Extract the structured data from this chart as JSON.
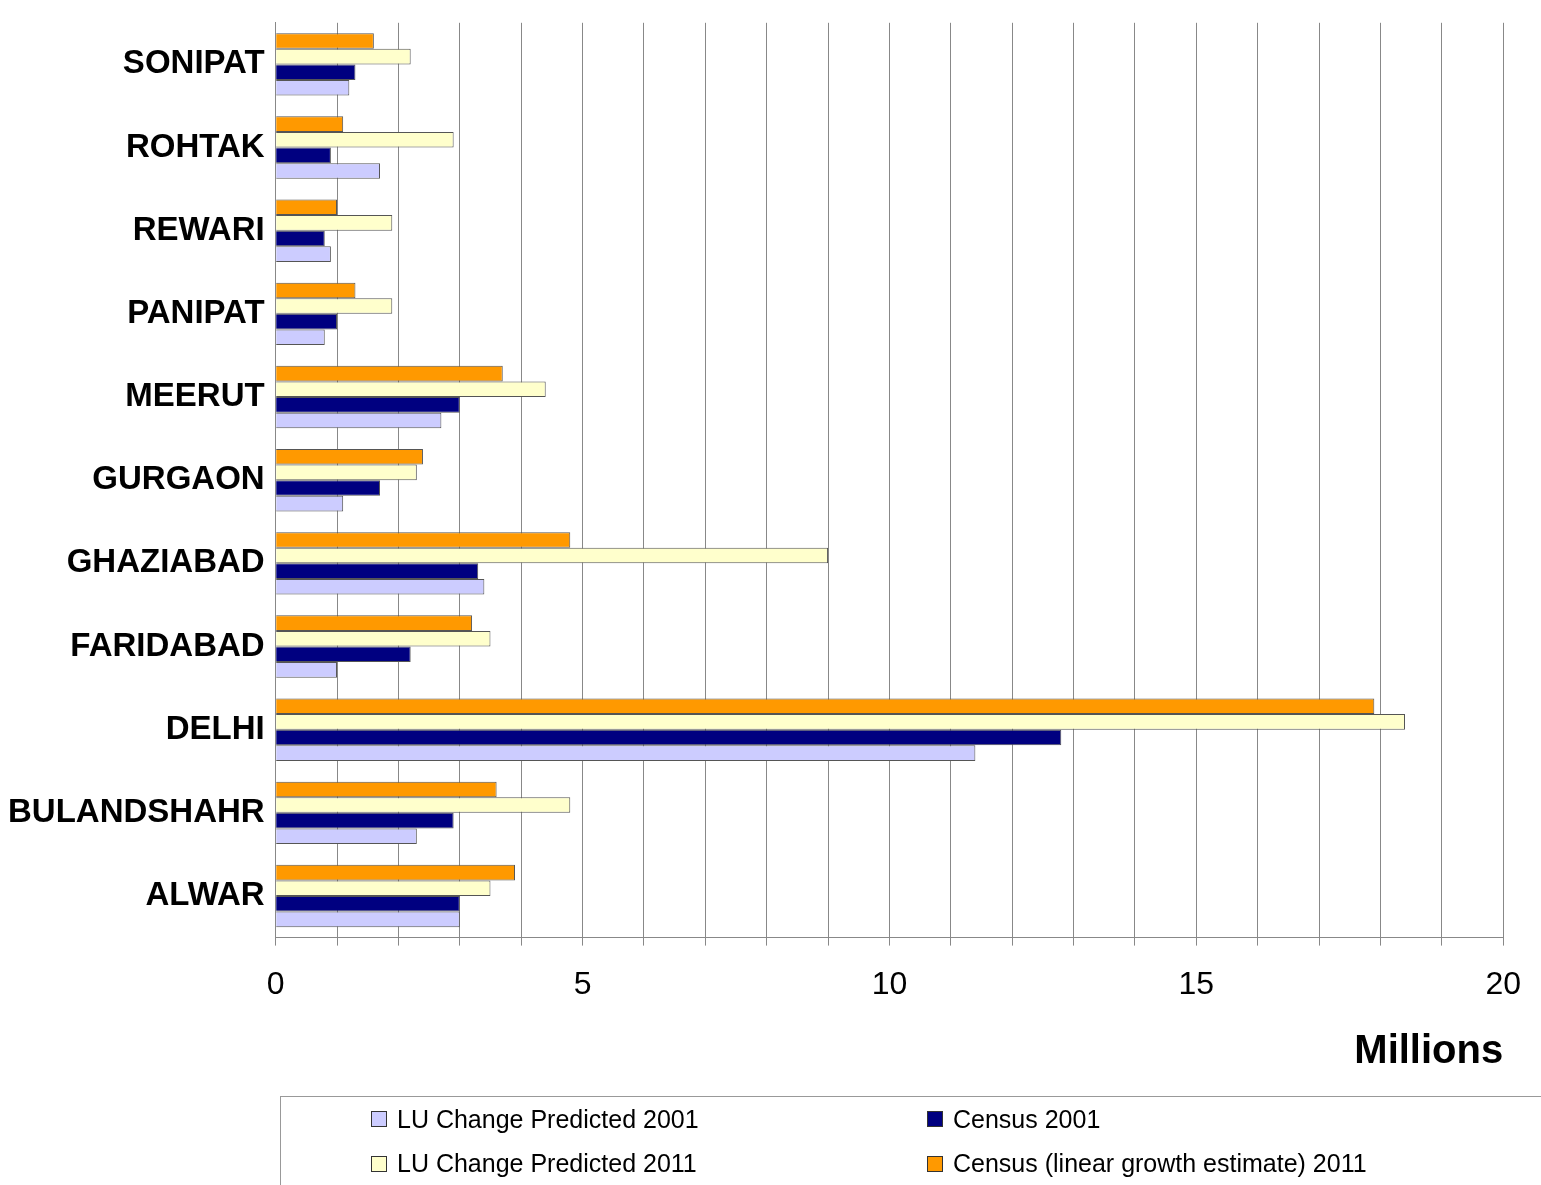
{
  "chart_data": {
    "type": "bar",
    "orientation": "horizontal",
    "xlabel": "Millions",
    "categories": [
      "SONIPAT",
      "ROHTAK",
      "REWARI",
      "PANIPAT",
      "MEERUT",
      "GURGAON",
      "GHAZIABAD",
      "FARIDABAD",
      "DELHI",
      "BULANDSHAHR",
      "ALWAR"
    ],
    "series": [
      {
        "name": "LU Change Predicted 2001",
        "color": "#ccccff",
        "values": [
          1.2,
          1.7,
          0.9,
          0.8,
          2.7,
          1.1,
          3.4,
          1.0,
          11.4,
          2.3,
          3.0
        ]
      },
      {
        "name": "Census 2001",
        "color": "#000080",
        "values": [
          1.3,
          0.9,
          0.8,
          1.0,
          3.0,
          1.7,
          3.3,
          2.2,
          12.8,
          2.9,
          3.0
        ]
      },
      {
        "name": "LU Change Predicted 2011",
        "color": "#ffffcc",
        "values": [
          2.2,
          2.9,
          1.9,
          1.9,
          4.4,
          2.3,
          9.0,
          3.5,
          18.4,
          4.8,
          3.5
        ]
      },
      {
        "name": "Census (linear growth estimate) 2011",
        "color": "#ff9900",
        "values": [
          1.6,
          1.1,
          1.0,
          1.3,
          3.7,
          2.4,
          4.8,
          3.2,
          17.9,
          3.6,
          3.9
        ]
      }
    ],
    "xlim": [
      0,
      20
    ],
    "xticks": [
      0,
      {
        "value": 1,
        "label": null
      },
      {
        "value": 2,
        "label": null
      },
      {
        "value": 3,
        "label": null
      },
      {
        "value": 4,
        "label": null
      },
      5,
      {
        "value": 6,
        "label": null
      },
      {
        "value": 7,
        "label": null
      },
      {
        "value": 8,
        "label": null
      },
      {
        "value": 9,
        "label": null
      },
      10,
      {
        "value": 11,
        "label": null
      },
      {
        "value": 12,
        "label": null
      },
      {
        "value": 13,
        "label": null
      },
      {
        "value": 14,
        "label": null
      },
      15,
      {
        "value": 16,
        "label": null
      },
      {
        "value": 17,
        "label": null
      },
      {
        "value": 18,
        "label": null
      },
      {
        "value": 19,
        "label": null
      },
      20
    ],
    "grid": "x",
    "legend": "bottom"
  }
}
